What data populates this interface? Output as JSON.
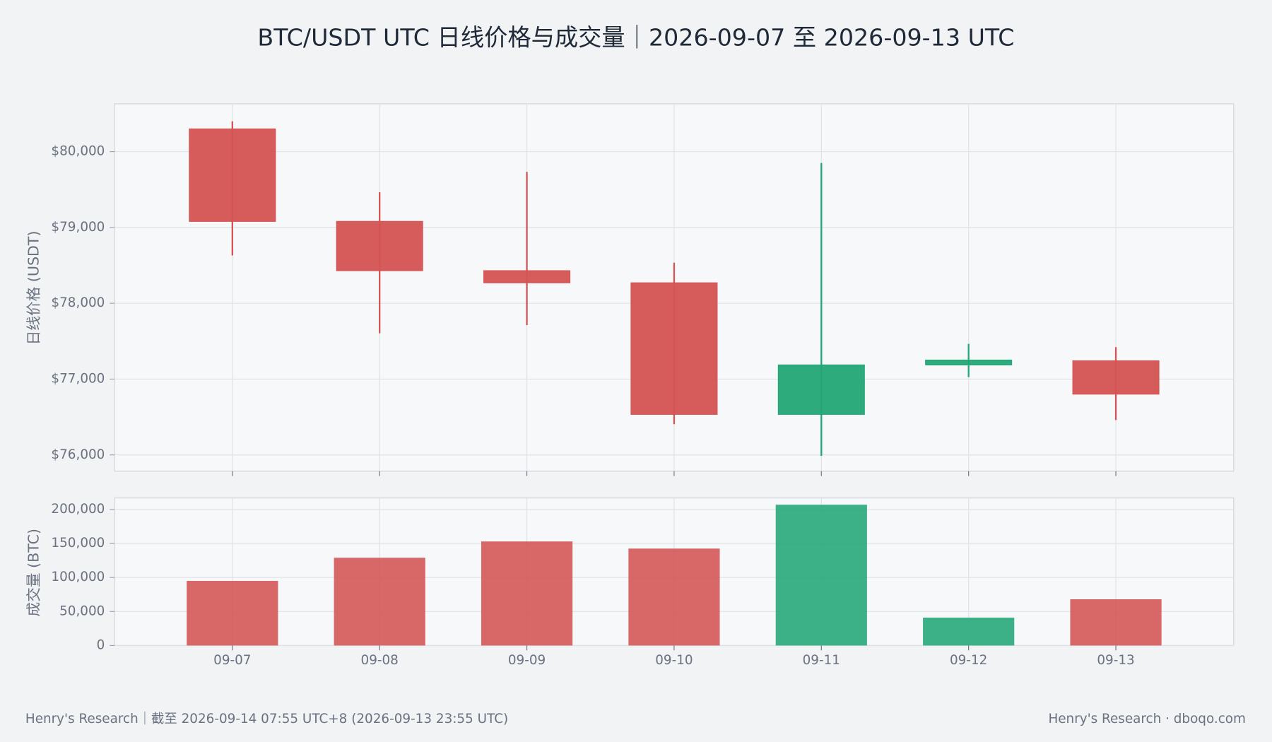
{
  "chart_data": {
    "type": "candlestick",
    "title": "BTC/USDT UTC 日线价格与成交量｜2026-09-07 至 2026-09-13 UTC",
    "ylabel": "日线价格 (USDT)",
    "categories": [
      "09-07",
      "09-08",
      "09-09",
      "09-10",
      "09-11",
      "09-12",
      "09-13"
    ],
    "open": [
      80300,
      79080,
      78430,
      78270,
      76535,
      77187,
      77241
    ],
    "high": [
      80400,
      79465,
      79733,
      78535,
      79850,
      77465,
      77422
    ],
    "low": [
      78631,
      77604,
      77711,
      76406,
      75989,
      77027,
      76460
    ],
    "close": [
      79080,
      78430,
      78270,
      76535,
      77187,
      77251,
      76802
    ],
    "up_color": "#22a676",
    "down_color": "#d45353",
    "ylim": [
      75786,
      80631
    ],
    "yticks": [
      {
        "value": 76000,
        "label": "$76,000"
      },
      {
        "value": 77000,
        "label": "$77,000"
      },
      {
        "value": 78000,
        "label": "$78,000"
      },
      {
        "value": 79000,
        "label": "$79,000"
      },
      {
        "value": 80000,
        "label": "$80,000"
      }
    ],
    "grid": true,
    "volume": {
      "ylabel": "成交量 (BTC)",
      "values": [
        95000,
        129000,
        153000,
        142500,
        207000,
        41000,
        68000
      ],
      "ylim": [
        0,
        217000
      ],
      "yticks": [
        0,
        {
          "value": 50000,
          "label": "50,000"
        },
        {
          "value": 100000,
          "label": "100,000"
        },
        {
          "value": 150000,
          "label": "150,000"
        },
        {
          "value": 200000,
          "label": "200,000"
        }
      ]
    }
  },
  "footer": {
    "left": "Henry's Research｜截至 2026-09-14 07:55 UTC+8 (2026-09-13 23:55 UTC)",
    "right": "Henry's Research · dboqo.com"
  }
}
